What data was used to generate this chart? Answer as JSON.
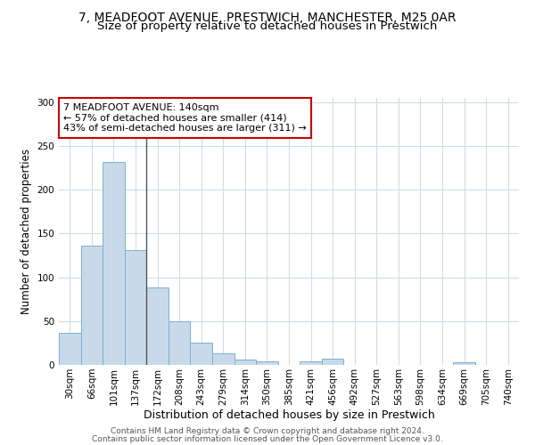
{
  "title1": "7, MEADFOOT AVENUE, PRESTWICH, MANCHESTER, M25 0AR",
  "title2": "Size of property relative to detached houses in Prestwich",
  "xlabel": "Distribution of detached houses by size in Prestwich",
  "ylabel": "Number of detached properties",
  "bin_labels": [
    "30sqm",
    "66sqm",
    "101sqm",
    "137sqm",
    "172sqm",
    "208sqm",
    "243sqm",
    "279sqm",
    "314sqm",
    "350sqm",
    "385sqm",
    "421sqm",
    "456sqm",
    "492sqm",
    "527sqm",
    "563sqm",
    "598sqm",
    "634sqm",
    "669sqm",
    "705sqm",
    "740sqm"
  ],
  "bar_heights": [
    37,
    136,
    232,
    131,
    88,
    50,
    25,
    13,
    6,
    4,
    0,
    4,
    7,
    0,
    0,
    0,
    0,
    0,
    3,
    0,
    0
  ],
  "bar_color": "#c8daea",
  "bar_edge_color": "#7bafd4",
  "vline_x_label": "137sqm",
  "vline_bar_index": 3,
  "vline_color": "#555555",
  "annotation_text": "7 MEADFOOT AVENUE: 140sqm\n← 57% of detached houses are smaller (414)\n43% of semi-detached houses are larger (311) →",
  "annotation_box_color": "white",
  "annotation_box_edge_color": "#cc0000",
  "annotation_fontsize": 8,
  "ylim": [
    0,
    305
  ],
  "yticks": [
    0,
    50,
    100,
    150,
    200,
    250,
    300
  ],
  "background_color": "#ffffff",
  "grid_color": "#d0dce8",
  "footer1": "Contains HM Land Registry data © Crown copyright and database right 2024.",
  "footer2": "Contains public sector information licensed under the Open Government Licence v3.0.",
  "title1_fontsize": 10,
  "title2_fontsize": 9.5,
  "xlabel_fontsize": 9,
  "ylabel_fontsize": 8.5,
  "tick_fontsize": 7.5,
  "footer_fontsize": 6.5
}
